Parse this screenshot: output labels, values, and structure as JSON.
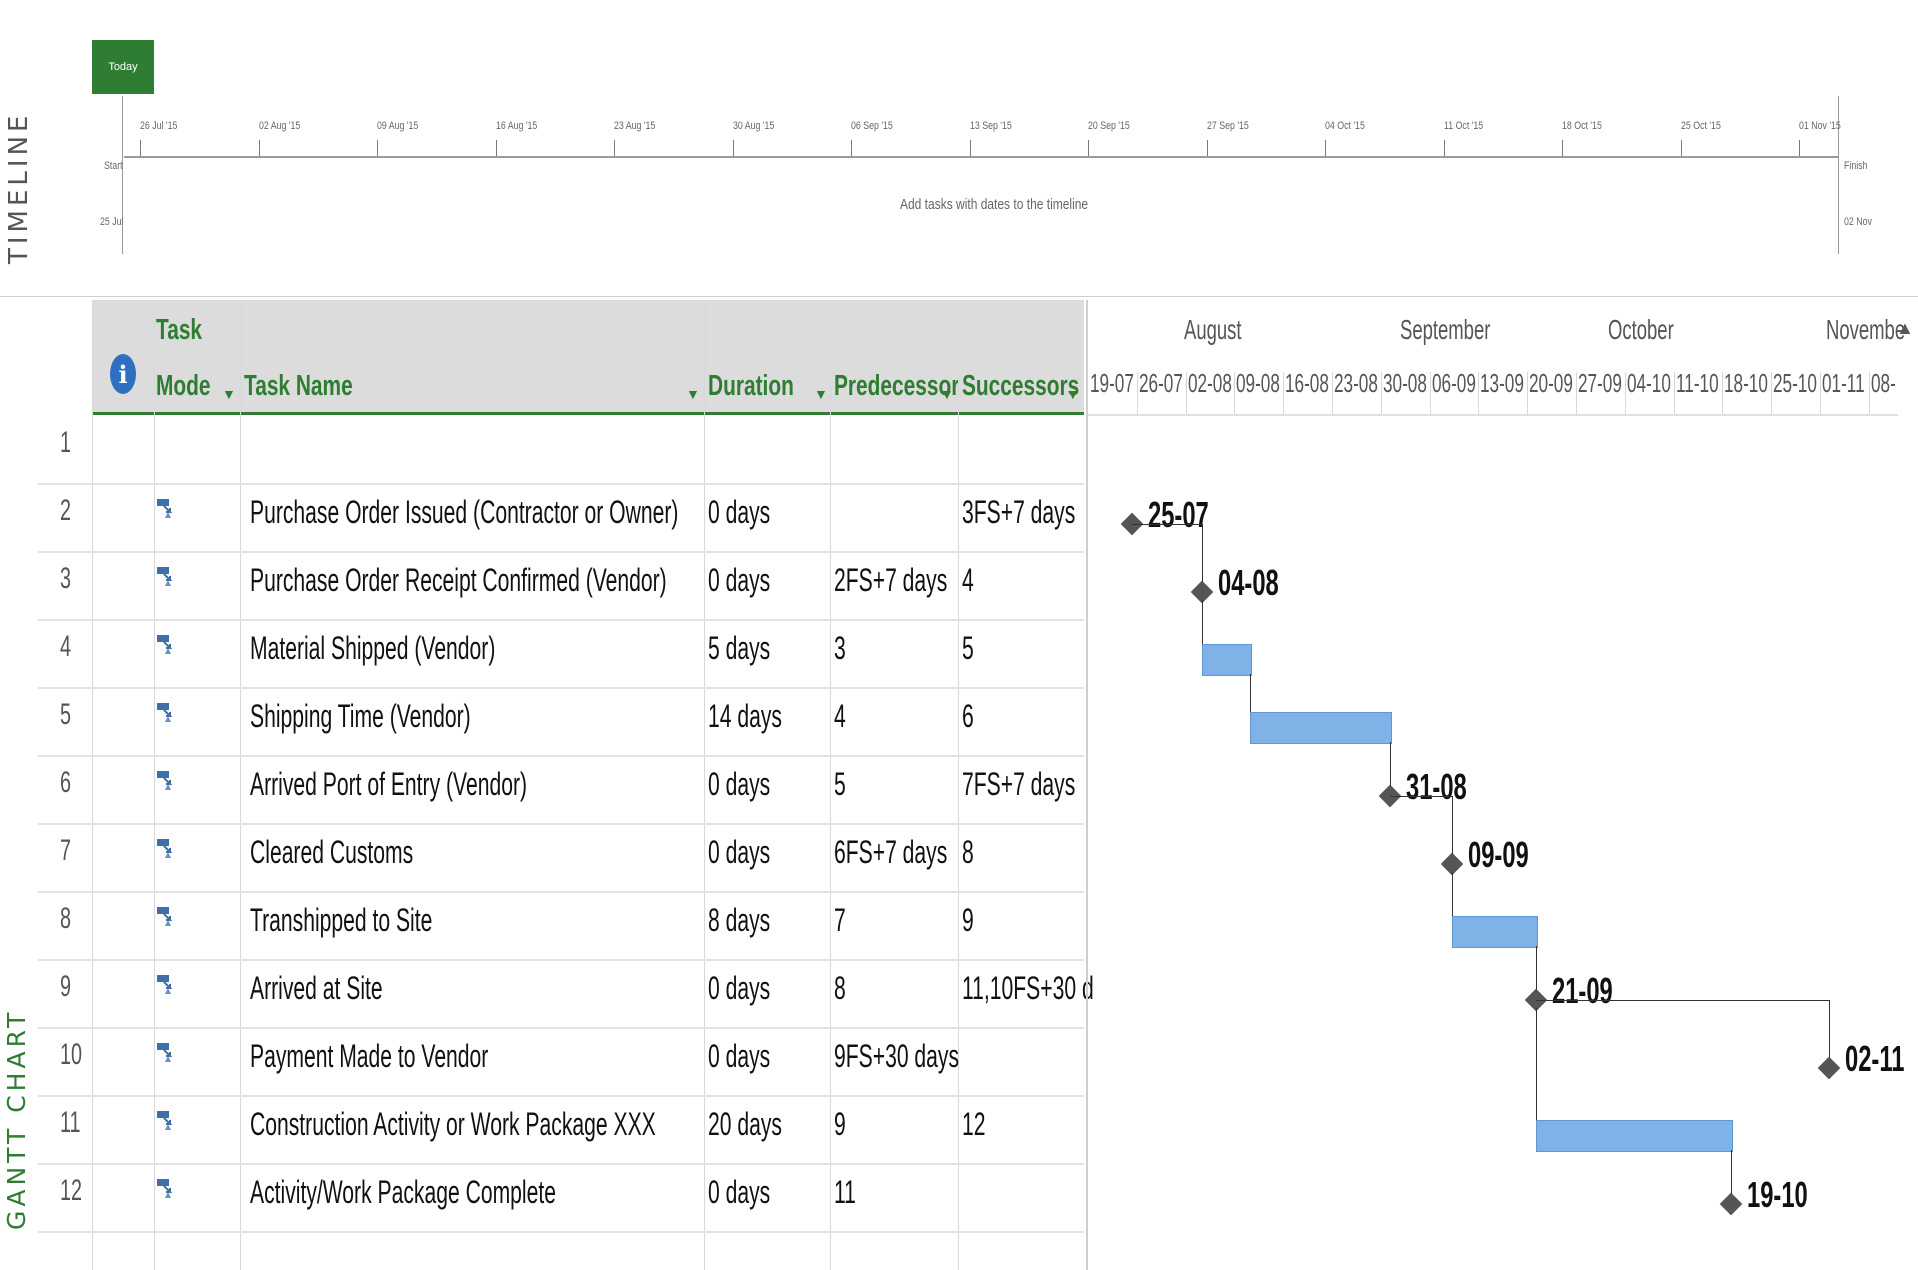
{
  "timeline": {
    "vertical_label": "TIMELINE",
    "today_label": "Today",
    "dates": [
      "26 Jul '15",
      "02 Aug '15",
      "09 Aug '15",
      "16 Aug '15",
      "23 Aug '15",
      "30 Aug '15",
      "06 Sep '15",
      "13 Sep '15",
      "20 Sep '15",
      "27 Sep '15",
      "04 Oct '15",
      "11 Oct '15",
      "18 Oct '15",
      "25 Oct '15",
      "01 Nov '15"
    ],
    "start_label": "Start",
    "start_date": "25 Jul",
    "finish_label": "Finish",
    "finish_date": "02 Nov",
    "hint": "Add tasks with dates to the timeline"
  },
  "gantt": {
    "vertical_label": "GANTT CHART",
    "headers": {
      "task_mode_line1": "Task",
      "task_mode_line2": "Mode",
      "task_name": "Task Name",
      "duration": "Duration",
      "predecessors": "Predecessor",
      "successors": "Successors"
    },
    "rows": [
      {
        "id": "1",
        "mode": false,
        "name": "",
        "duration": "",
        "pred": "",
        "succ": ""
      },
      {
        "id": "2",
        "mode": true,
        "name": "Purchase Order Issued  (Contractor or Owner)",
        "duration": "0 days",
        "pred": "",
        "succ": "3FS+7 days"
      },
      {
        "id": "3",
        "mode": true,
        "name": "Purchase Order Receipt Confirmed (Vendor)",
        "duration": "0 days",
        "pred": "2FS+7 days",
        "succ": "4"
      },
      {
        "id": "4",
        "mode": true,
        "name": "Material Shipped (Vendor)",
        "duration": "5 days",
        "pred": "3",
        "succ": "5"
      },
      {
        "id": "5",
        "mode": true,
        "name": "Shipping Time (Vendor)",
        "duration": "14 days",
        "pred": "4",
        "succ": "6"
      },
      {
        "id": "6",
        "mode": true,
        "name": "Arrived Port of Entry (Vendor)",
        "duration": "0 days",
        "pred": "5",
        "succ": "7FS+7 days"
      },
      {
        "id": "7",
        "mode": true,
        "name": "Cleared Customs",
        "duration": "0 days",
        "pred": "6FS+7 days",
        "succ": "8"
      },
      {
        "id": "8",
        "mode": true,
        "name": "Transhipped to Site",
        "duration": "8 days",
        "pred": "7",
        "succ": "9"
      },
      {
        "id": "9",
        "mode": true,
        "name": "Arrived at Site",
        "duration": "0 days",
        "pred": "8",
        "succ": "11,10FS+30 d"
      },
      {
        "id": "10",
        "mode": true,
        "name": "Payment Made to Vendor",
        "duration": "0 days",
        "pred": "9FS+30 days",
        "succ": ""
      },
      {
        "id": "11",
        "mode": true,
        "name": "Construction Activity or Work Package XXX",
        "duration": "20 days",
        "pred": "9",
        "succ": "12"
      },
      {
        "id": "12",
        "mode": true,
        "name": "Activity/Work Package Complete",
        "duration": "0 days",
        "pred": "11",
        "succ": ""
      }
    ]
  },
  "chart": {
    "months": [
      "August",
      "September",
      "October",
      "Novembe"
    ],
    "weeks": [
      "19-07",
      "26-07",
      "02-08",
      "09-08",
      "16-08",
      "23-08",
      "30-08",
      "06-09",
      "13-09",
      "20-09",
      "27-09",
      "04-10",
      "11-10",
      "18-10",
      "25-10",
      "01-11",
      "08-"
    ],
    "milestone_labels": {
      "r2": "25-07",
      "r3": "04-08",
      "r6": "31-08",
      "r7": "09-09",
      "r9": "21-09",
      "r10": "02-11",
      "r12": "19-10"
    },
    "tasks": [
      {
        "row": 2,
        "type": "milestone",
        "start_day": 6
      },
      {
        "row": 3,
        "type": "milestone",
        "start_day": 16
      },
      {
        "row": 4,
        "type": "bar",
        "start_day": 16,
        "end_day": 23
      },
      {
        "row": 5,
        "type": "bar",
        "start_day": 23,
        "end_day": 43
      },
      {
        "row": 6,
        "type": "milestone",
        "start_day": 43
      },
      {
        "row": 7,
        "type": "milestone",
        "start_day": 52
      },
      {
        "row": 8,
        "type": "bar",
        "start_day": 52,
        "end_day": 64
      },
      {
        "row": 9,
        "type": "milestone",
        "start_day": 64
      },
      {
        "row": 10,
        "type": "milestone",
        "start_day": 106
      },
      {
        "row": 11,
        "type": "bar",
        "start_day": 64,
        "end_day": 92
      },
      {
        "row": 12,
        "type": "milestone",
        "start_day": 92
      }
    ],
    "colors": {
      "bar": "#7fb2e6",
      "milestone": "#555555",
      "accent": "#2e7d32"
    }
  }
}
